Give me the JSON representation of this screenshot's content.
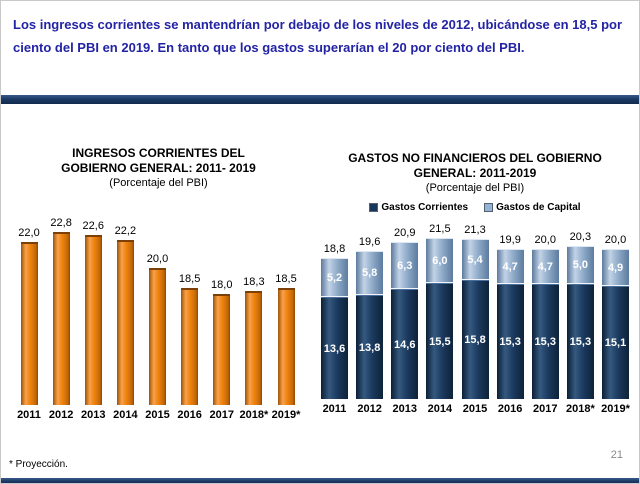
{
  "slide": {
    "header": "Los ingresos corrientes se mantendrían por debajo de los niveles de 2012, ubicándose en 18,5 por ciento del PBI en 2019. En tanto que los gastos superarían el 20 por ciento del PBI.",
    "footnote": "* Proyección.",
    "page_number": "21"
  },
  "colors": {
    "header_text": "#2323A5",
    "divider_band": "#1B3A64",
    "ingresos_bar": "#EE820E",
    "gastos_corrientes": "#17365D",
    "gastos_capital": "#95B3D7"
  },
  "chart_data": [
    {
      "type": "bar",
      "title": "INGRESOS CORRIENTES DEL GOBIERNO GENERAL: 2011- 2019",
      "subtitle": "(Porcentaje del PBI)",
      "categories": [
        "2011",
        "2012",
        "2013",
        "2014",
        "2015",
        "2016",
        "2017",
        "2018*",
        "2019*"
      ],
      "values": [
        22.0,
        22.8,
        22.6,
        22.2,
        20.0,
        18.5,
        18.0,
        18.3,
        18.5
      ],
      "value_labels": [
        "22,0",
        "22,8",
        "22,6",
        "22,2",
        "20,0",
        "18,5",
        "18,0",
        "18,3",
        "18,5"
      ],
      "xlabel": "",
      "ylabel": "Porcentaje del PBI",
      "grid": false,
      "legend": false,
      "bar_color": "#EE820E"
    },
    {
      "type": "bar",
      "stacked": true,
      "title": "GASTOS NO FINANCIEROS DEL GOBIERNO GENERAL: 2011-2019",
      "subtitle": "(Porcentaje del PBI)",
      "categories": [
        "2011",
        "2012",
        "2013",
        "2014",
        "2015",
        "2016",
        "2017",
        "2018*",
        "2019*"
      ],
      "series": [
        {
          "name": "Gastos Corrientes",
          "color": "#17365D",
          "values": [
            13.6,
            13.8,
            14.6,
            15.5,
            15.8,
            15.3,
            15.3,
            15.3,
            15.1
          ],
          "labels": [
            "13,6",
            "13,8",
            "14,6",
            "15,5",
            "15,8",
            "15,3",
            "15,3",
            "15,3",
            "15,1"
          ]
        },
        {
          "name": "Gastos de Capital",
          "color": "#95B3D7",
          "values": [
            5.2,
            5.8,
            6.3,
            6.0,
            5.4,
            4.7,
            4.7,
            5.0,
            4.9
          ],
          "labels": [
            "5,2",
            "5,8",
            "6,3",
            "6,0",
            "5,4",
            "4,7",
            "4,7",
            "5,0",
            "4,9"
          ]
        }
      ],
      "totals": [
        18.8,
        19.6,
        20.9,
        21.5,
        21.3,
        19.9,
        20.0,
        20.3,
        20.0
      ],
      "total_labels": [
        "18,8",
        "19,6",
        "20,9",
        "21,5",
        "21,3",
        "19,9",
        "20,0",
        "20,3",
        "20,0"
      ],
      "xlabel": "",
      "ylabel": "Porcentaje del PBI",
      "grid": false,
      "legend": true,
      "legend_position": "top"
    }
  ]
}
